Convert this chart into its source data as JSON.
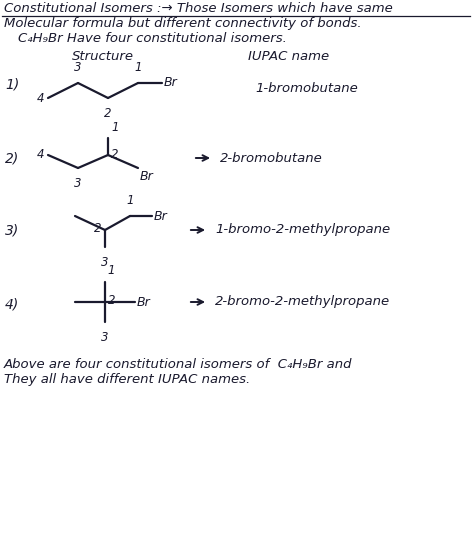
{
  "title_line1": "Constitutional Isomers :→ Those Isomers which have same",
  "title_line2": "Molecular formula but different connectivity of bonds.",
  "subtitle": "C₄H₉Br Have four constitutional isomers.",
  "col_header1": "Structure",
  "col_header2": "IUPAC name",
  "background_color": "#ffffff",
  "text_color": "#1a1a2e",
  "line_color": "#1a1a2e",
  "footer_line1": "Above are four constitutional isomers of  C₄H₉Br and",
  "footer_line2": "They all have different IUPAC names.",
  "isomer1_name": "1-bromobutane",
  "isomer2_name": "2-bromobutane",
  "isomer3_name": "1-bromo-2-methylpropane",
  "isomer4_name": "2-bromo-2-methylpropane"
}
